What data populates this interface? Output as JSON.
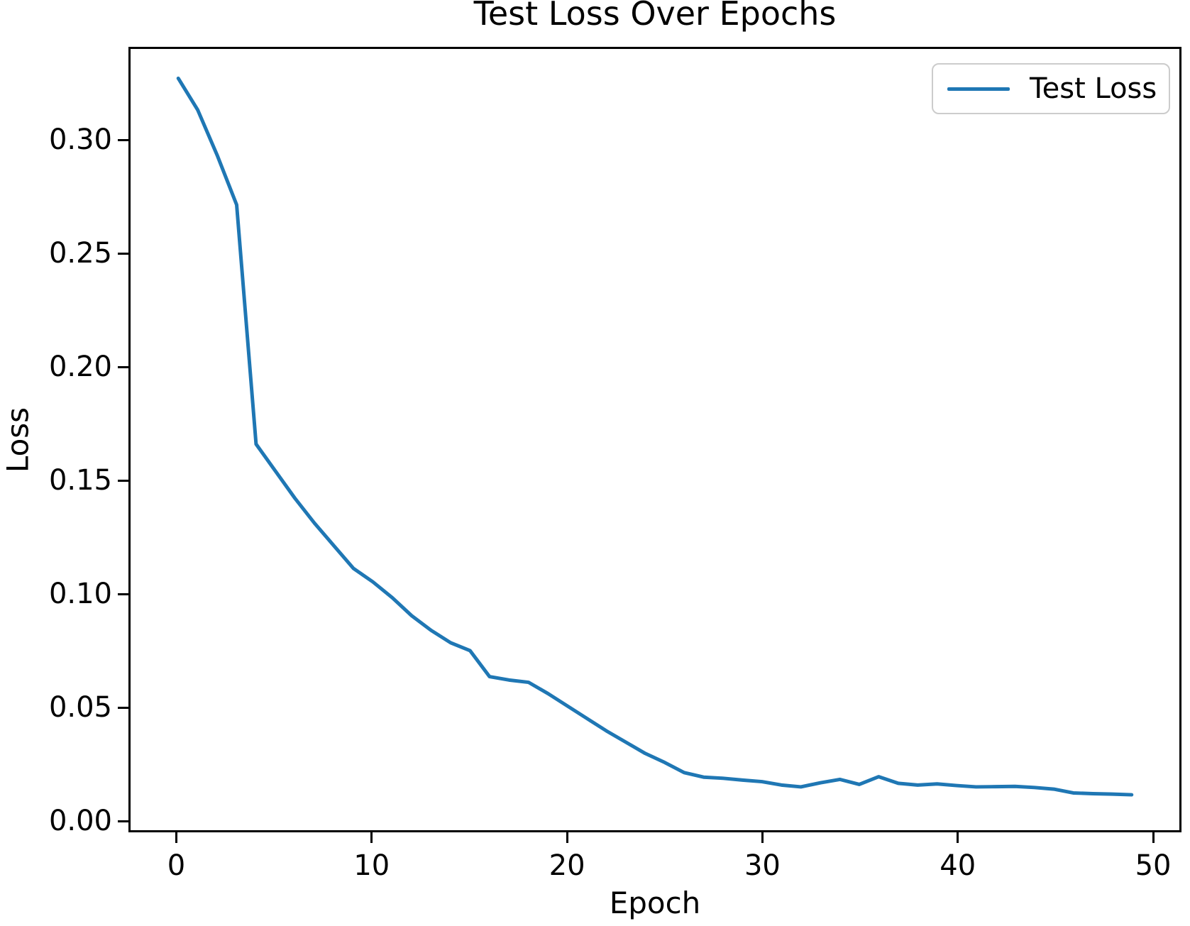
{
  "chart_data": {
    "type": "line",
    "title": "Test Loss Over Epochs",
    "xlabel": "Epoch",
    "ylabel": "Loss",
    "grid": false,
    "legend_position": "upper right",
    "xlim": [
      -2.45,
      51.45
    ],
    "ylim": [
      -0.005,
      0.341
    ],
    "x_ticks": [
      0,
      10,
      20,
      30,
      40,
      50
    ],
    "x_tick_labels": [
      "0",
      "10",
      "20",
      "30",
      "40",
      "50"
    ],
    "y_ticks": [
      0.0,
      0.05,
      0.1,
      0.15,
      0.2,
      0.25,
      0.3
    ],
    "y_tick_labels": [
      "0.00",
      "0.05",
      "0.10",
      "0.15",
      "0.20",
      "0.25",
      "0.30"
    ],
    "line_width": 5,
    "x": [
      0,
      1,
      2,
      3,
      4,
      5,
      6,
      7,
      8,
      9,
      10,
      11,
      12,
      13,
      14,
      15,
      16,
      17,
      18,
      19,
      20,
      21,
      22,
      23,
      24,
      25,
      26,
      27,
      28,
      29,
      30,
      31,
      32,
      33,
      34,
      35,
      36,
      37,
      38,
      39,
      40,
      41,
      42,
      43,
      44,
      45,
      46,
      47,
      48,
      49
    ],
    "series": [
      {
        "name": "Test Loss",
        "color": "#1f77b4",
        "values": [
          0.328,
          0.314,
          0.294,
          0.272,
          0.166,
          0.154,
          0.142,
          0.131,
          0.121,
          0.111,
          0.105,
          0.098,
          0.09,
          0.0835,
          0.078,
          0.0745,
          0.063,
          0.0615,
          0.0605,
          0.0555,
          0.05,
          0.0445,
          0.039,
          0.034,
          0.029,
          0.025,
          0.0205,
          0.0185,
          0.018,
          0.0172,
          0.0165,
          0.015,
          0.0142,
          0.016,
          0.0175,
          0.0153,
          0.0187,
          0.0158,
          0.015,
          0.0155,
          0.0148,
          0.0142,
          0.0143,
          0.0144,
          0.0139,
          0.0132,
          0.0115,
          0.0112,
          0.011,
          0.0107
        ]
      }
    ],
    "axis_color": "#000000",
    "background_color": "#ffffff"
  }
}
